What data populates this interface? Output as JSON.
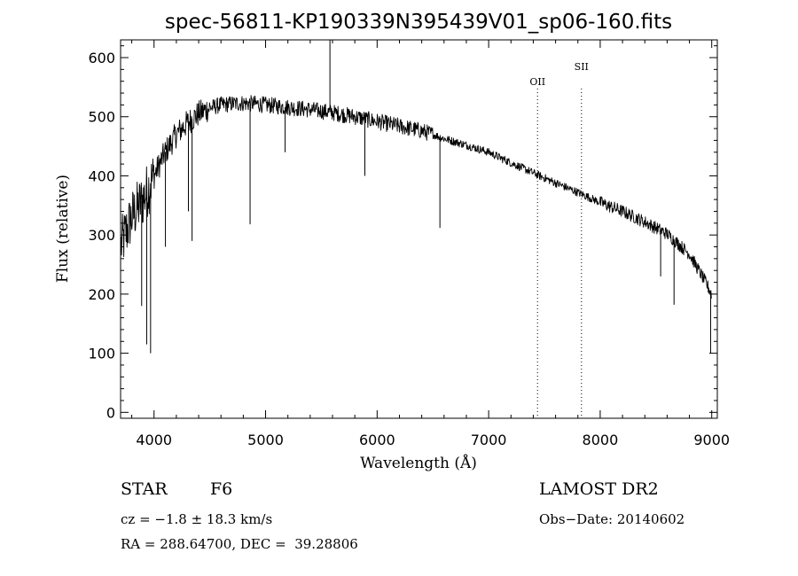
{
  "chart_data": {
    "type": "line",
    "title": "spec-56811-KP190339N395439V01_sp06-160.fits",
    "xlabel": "Wavelength (Å)",
    "ylabel": "Flux (relative)",
    "xlim": [
      3700,
      9050
    ],
    "ylim": [
      -10,
      630
    ],
    "xticks": [
      4000,
      5000,
      6000,
      7000,
      8000,
      9000
    ],
    "yticks": [
      0,
      100,
      200,
      300,
      400,
      500,
      600
    ],
    "xtick_labels": [
      "4000",
      "5000",
      "6000",
      "7000",
      "8000",
      "9000"
    ],
    "ytick_labels": [
      "0",
      "100",
      "200",
      "300",
      "400",
      "500",
      "600"
    ],
    "grid": false,
    "continuum": {
      "x": [
        3700,
        3800,
        3900,
        4000,
        4100,
        4200,
        4300,
        4400,
        4500,
        4600,
        4700,
        4800,
        4900,
        5000,
        5200,
        5400,
        5600,
        5800,
        6000,
        6200,
        6400,
        6500,
        6600,
        6800,
        7000,
        7200,
        7400,
        7600,
        7800,
        8000,
        8200,
        8400,
        8600,
        8800,
        8950,
        9000
      ],
      "y": [
        280,
        330,
        360,
        400,
        440,
        470,
        490,
        505,
        515,
        520,
        522,
        523,
        522,
        520,
        516,
        512,
        507,
        500,
        492,
        484,
        476,
        470,
        463,
        452,
        440,
        422,
        405,
        388,
        372,
        355,
        340,
        322,
        302,
        268,
        218,
        200
      ],
      "noise": [
        {
          "x0": 3700,
          "x1": 4000,
          "amp": 95
        },
        {
          "x0": 4000,
          "x1": 4500,
          "amp": 45
        },
        {
          "x0": 4500,
          "x1": 6500,
          "amp": 28
        },
        {
          "x0": 6500,
          "x1": 8000,
          "amp": 14
        },
        {
          "x0": 8000,
          "x1": 9000,
          "amp": 22
        }
      ]
    },
    "features": [
      {
        "x": 3934,
        "y": 115
      },
      {
        "x": 3969,
        "y": 100
      },
      {
        "x": 3889,
        "y": 180
      },
      {
        "x": 4102,
        "y": 280
      },
      {
        "x": 4308,
        "y": 340
      },
      {
        "x": 4341,
        "y": 290
      },
      {
        "x": 4861,
        "y": 318
      },
      {
        "x": 5175,
        "y": 440
      },
      {
        "x": 5577,
        "y": 630
      },
      {
        "x": 5890,
        "y": 400
      },
      {
        "x": 6563,
        "y": 312
      },
      {
        "x": 8542,
        "y": 230
      },
      {
        "x": 8662,
        "y": 182
      },
      {
        "x": 8990,
        "y": 100
      }
    ],
    "marker_lines": [
      {
        "label": "OII",
        "x": 7438
      },
      {
        "label": "SII",
        "x": 7832
      }
    ]
  },
  "info": {
    "class": "STAR",
    "subclass": "F6",
    "survey": "LAMOST DR2",
    "cz": "cz = −1.8 ± 18.3 km/s",
    "obs_date": "Obs−Date: 20140602",
    "coords": "RA = 288.64700, DEC =  39.28806"
  }
}
